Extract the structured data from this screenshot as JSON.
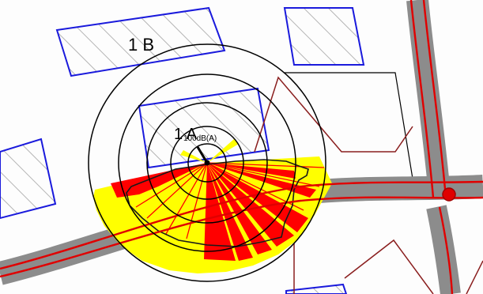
{
  "map": {
    "labels": {
      "building_b": "1 B",
      "building_a": "1 A",
      "building_a_sub": "100dB(A)"
    },
    "colors": {
      "background": "#fdfdfd",
      "building_outline": "#1a1adc",
      "hatch": "#b4b4b4",
      "road_fill": "#8c8c8c",
      "road_line": "#e00000",
      "plot_boundary": "#8a1e1e",
      "property_line": "#000000",
      "contour": "#000000",
      "rose_yellow": "#ffff00",
      "rose_red": "#ff0000"
    },
    "icons": {
      "receiver": "receiver-point-icon",
      "source": "noise-source-icon"
    }
  }
}
